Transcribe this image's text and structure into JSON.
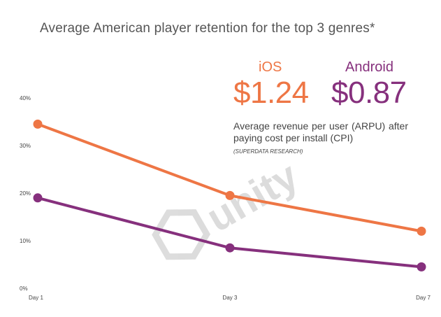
{
  "chart_data": {
    "type": "line",
    "title": "Average American player retention for the top 3 genres*",
    "categories": [
      "Day 1",
      "Day 3",
      "Day 7"
    ],
    "yticks": [
      "0%",
      "10%",
      "20%",
      "30%",
      "40%"
    ],
    "ylim": [
      0,
      40
    ],
    "grid": false,
    "series": [
      {
        "name": "iOS",
        "color": "#EE7645",
        "values": [
          34.5,
          19.5,
          12.0
        ]
      },
      {
        "name": "Android",
        "color": "#86307D",
        "values": [
          19.0,
          8.5,
          4.5
        ]
      }
    ],
    "annotations": {
      "ios_label": "iOS",
      "ios_value": "$1.24",
      "android_label": "Android",
      "android_value": "$0.87",
      "description": "Average revenue per user (ARPU) after paying cost per install (CPI)",
      "source": "(SUPERDATA RESEARCH)"
    }
  },
  "watermark": {
    "text": "unity",
    "color": "#D9D9D9"
  }
}
